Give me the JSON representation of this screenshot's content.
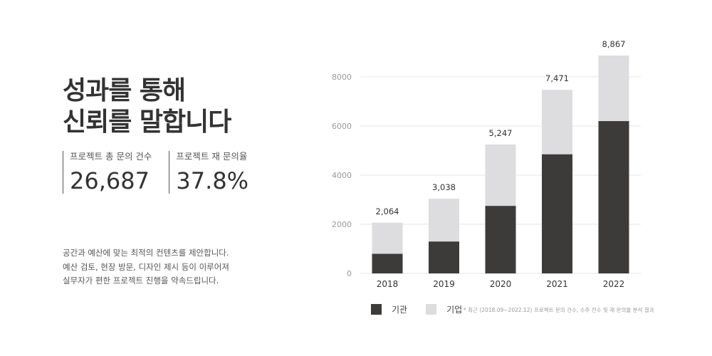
{
  "headline": {
    "line1": "성과를 통해",
    "line2": "신뢰를 말합니다"
  },
  "stats": [
    {
      "label": "프로젝트 총 문의 건수",
      "value": "26,687"
    },
    {
      "label": "프로젝트 재 문의율",
      "value": "37.8%"
    }
  ],
  "description": [
    "공간과 예산에 맞는 최적의 컨텐츠를 제안합니다.",
    "예산 검토, 현장 방문, 디자인 제시 등이 이루어져",
    "실무자가 편한 프로젝트 진행을 약속드립니다."
  ],
  "note": "* 최근 (2018.09~2022.12) 프로젝트 문의 건수, 수주 전수 및 재 문의율 분석 결과",
  "colors": {
    "dark": "#3d3a3a",
    "light": "#dddddf",
    "grid": "#e6e6e6",
    "axis_text": "#999999"
  },
  "chart_data": {
    "type": "bar",
    "stacked": true,
    "categories": [
      "2018",
      "2019",
      "2020",
      "2021",
      "2022"
    ],
    "series": [
      {
        "name": "기관",
        "values": [
          800,
          1300,
          2750,
          4850,
          6200
        ]
      },
      {
        "name": "기업",
        "values": [
          1264,
          1738,
          2497,
          2621,
          2667
        ]
      }
    ],
    "totals": [
      "2,064",
      "3,038",
      "5,247",
      "7,471",
      "8,867"
    ],
    "yticks": [
      0,
      2000,
      4000,
      6000,
      8000
    ],
    "ylim": [
      0,
      8867
    ],
    "grid": true,
    "legend": "bottom-left"
  }
}
